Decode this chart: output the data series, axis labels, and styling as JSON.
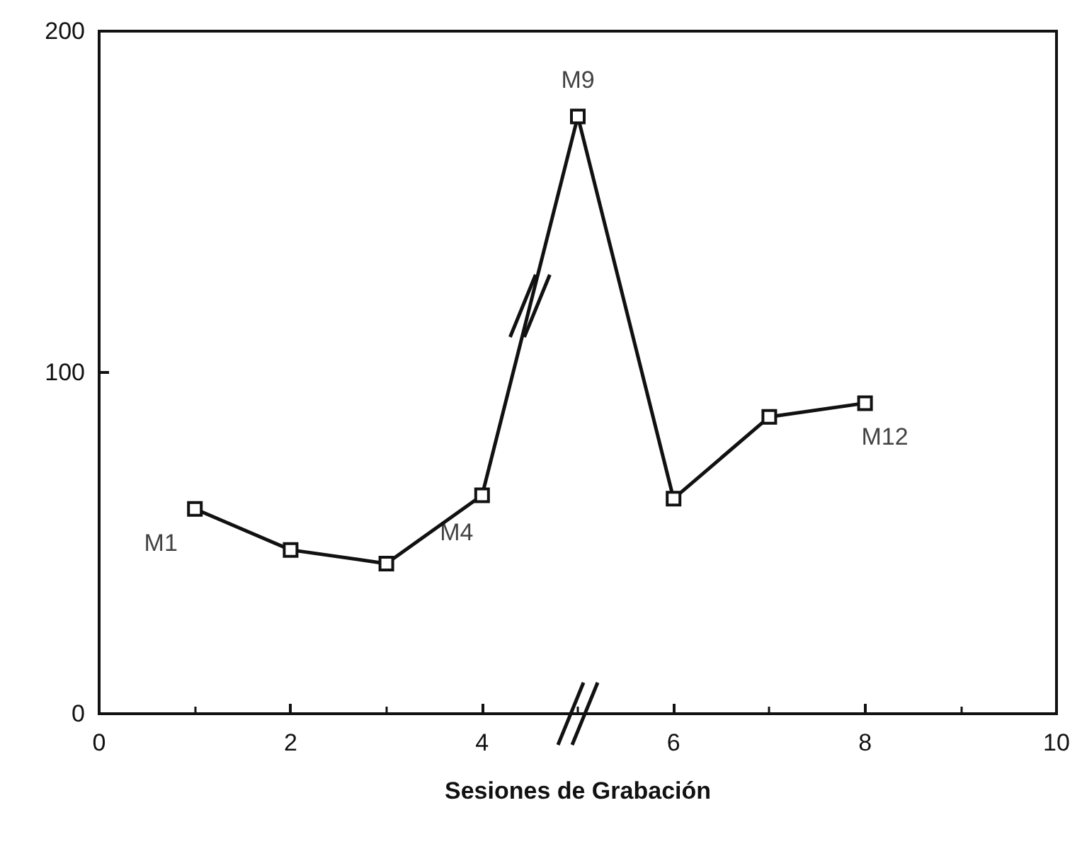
{
  "chart_data": {
    "type": "line",
    "xlabel": "Sesiones de Grabación",
    "x": [
      1,
      2,
      3,
      4,
      5,
      6,
      7,
      8
    ],
    "series": [
      {
        "color": "#111111",
        "values": [
          60,
          48,
          44,
          64,
          175,
          63,
          87,
          91
        ]
      }
    ],
    "xlim": [
      0,
      10
    ],
    "xticks": [
      0,
      2,
      4,
      6,
      8,
      10
    ],
    "ylim": [
      0,
      200
    ],
    "yticks": [
      0,
      100,
      200
    ],
    "annotations": [
      {
        "text": "M1",
        "x": 1,
        "y": 60
      },
      {
        "text": "M4",
        "x": 4,
        "y": 64
      },
      {
        "text": "M9",
        "x": 5,
        "y": 175
      },
      {
        "text": "M12",
        "x": 8,
        "y": 91
      }
    ],
    "grid": false,
    "marker": "square",
    "line_style": "solid"
  }
}
